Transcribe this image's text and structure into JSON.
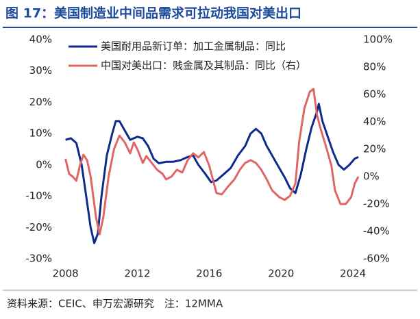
{
  "chart_data": {
    "type": "line",
    "title": "图 17：美国制造业中间品需求可拉动我国对美出口",
    "source": "资料来源：CEIC、申万宏源研究　注：12MMA",
    "xlim": [
      2007.9,
      2024.3
    ],
    "xticks": [
      2008,
      2012,
      2016,
      2020,
      2024
    ],
    "ylim": [
      -30,
      40
    ],
    "yticks": [
      {
        "value": -30,
        "label": "-30%"
      },
      {
        "value": -20,
        "label": "-20%"
      },
      {
        "value": -10,
        "label": "-10%"
      },
      {
        "value": 0,
        "label": "0%"
      },
      {
        "value": 10,
        "label": "10%"
      },
      {
        "value": 20,
        "label": "20%"
      },
      {
        "value": 30,
        "label": "30%"
      },
      {
        "value": 40,
        "label": "40%"
      }
    ],
    "y2lim": [
      -60,
      100
    ],
    "y2ticks": [
      {
        "value": -60,
        "label": "-60%"
      },
      {
        "value": -40,
        "label": "-40%"
      },
      {
        "value": -20,
        "label": "-20%"
      },
      {
        "value": 0,
        "label": "0%"
      },
      {
        "value": 20,
        "label": "20%"
      },
      {
        "value": 40,
        "label": "40%"
      },
      {
        "value": 60,
        "label": "60%"
      },
      {
        "value": 80,
        "label": "80%"
      },
      {
        "value": 100,
        "label": "100%"
      }
    ],
    "legend": "upper left",
    "series": [
      {
        "name": "美国耐用品新订单：加工金属制品：同比",
        "color": "#0d2a8c",
        "axis": "y",
        "x": [
          2008.0,
          2008.3,
          2008.6,
          2008.9,
          2009.1,
          2009.4,
          2009.6,
          2009.8,
          2010.0,
          2010.3,
          2010.6,
          2010.8,
          2011.0,
          2011.3,
          2011.6,
          2012.0,
          2012.3,
          2012.6,
          2012.9,
          2013.2,
          2013.6,
          2014.0,
          2014.4,
          2014.8,
          2015.1,
          2015.4,
          2015.8,
          2016.1,
          2016.4,
          2016.8,
          2017.2,
          2017.6,
          2018.0,
          2018.3,
          2018.6,
          2018.9,
          2019.2,
          2019.6,
          2019.9,
          2020.2,
          2020.5,
          2020.8,
          2021.1,
          2021.4,
          2021.7,
          2022.0,
          2022.1,
          2022.3,
          2022.6,
          2022.9,
          2023.2,
          2023.5,
          2023.8,
          2024.1,
          2024.3
        ],
        "values": [
          8,
          8.5,
          7,
          0,
          -8,
          -20,
          -25,
          -22,
          -10,
          3,
          10,
          14,
          14,
          11,
          8,
          9,
          8.5,
          6,
          2,
          0.5,
          1,
          1,
          1.5,
          2.5,
          3,
          0,
          -3,
          -5.5,
          -5,
          -3,
          -1,
          3,
          6,
          10,
          11.5,
          10,
          6,
          2,
          -1,
          -4,
          -7.5,
          -9,
          -3,
          5,
          12,
          17,
          19.5,
          14,
          9,
          4,
          0,
          -1.5,
          0,
          2,
          2.5
        ]
      },
      {
        "name": "中国对美出口：贱金属及其制品：同比（右）",
        "color": "#e06666",
        "axis": "y2",
        "x": [
          2008.0,
          2008.2,
          2008.4,
          2008.6,
          2008.8,
          2009.0,
          2009.2,
          2009.4,
          2009.7,
          2009.9,
          2010.1,
          2010.4,
          2010.7,
          2011.0,
          2011.3,
          2011.6,
          2011.8,
          2012.0,
          2012.3,
          2012.5,
          2012.8,
          2013.1,
          2013.4,
          2013.6,
          2013.9,
          2014.2,
          2014.5,
          2014.8,
          2015.1,
          2015.4,
          2015.7,
          2016.0,
          2016.4,
          2016.7,
          2017.0,
          2017.4,
          2017.7,
          2018.0,
          2018.3,
          2018.6,
          2018.9,
          2019.2,
          2019.5,
          2019.9,
          2020.2,
          2020.5,
          2020.8,
          2021.0,
          2021.3,
          2021.6,
          2021.8,
          2022.0,
          2022.2,
          2022.5,
          2022.8,
          2023.0,
          2023.3,
          2023.6,
          2023.9,
          2024.1,
          2024.3
        ],
        "values": [
          13,
          2,
          0,
          -3,
          8,
          16,
          12,
          0,
          -30,
          -42,
          -30,
          0,
          20,
          30,
          25,
          17,
          25,
          20,
          10,
          15,
          10,
          5,
          2,
          -2,
          0,
          5,
          3,
          12,
          17,
          14,
          18,
          8,
          -12,
          -13,
          -8,
          -2,
          5,
          10,
          12,
          10,
          5,
          -2,
          -10,
          -15,
          -17,
          -14,
          -5,
          25,
          50,
          62,
          64,
          45,
          35,
          22,
          8,
          -10,
          -20,
          -20,
          -15,
          -5,
          0
        ]
      }
    ]
  }
}
